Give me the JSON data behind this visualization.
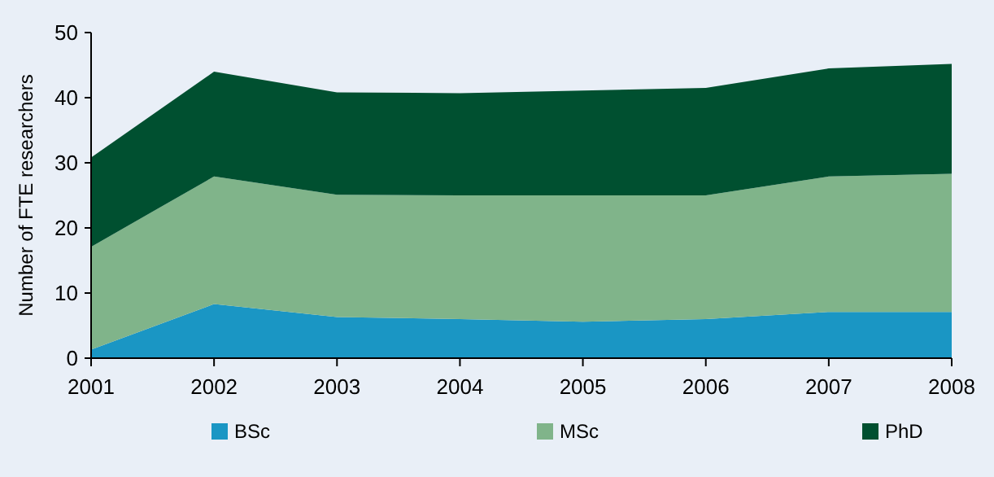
{
  "chart_data": {
    "type": "area",
    "stacked": true,
    "ylabel": "Number of FTE researchers",
    "categories": [
      "2001",
      "2002",
      "2003",
      "2004",
      "2005",
      "2006",
      "2007",
      "2008"
    ],
    "series": [
      {
        "name": "BSc",
        "color": "#1a96c4",
        "values": [
          1.3,
          8.3,
          6.3,
          6,
          5.6,
          6,
          7.1,
          7.1
        ]
      },
      {
        "name": "MSc",
        "color": "#80b48a",
        "values": [
          15.8,
          19.6,
          18.8,
          19,
          19.4,
          19,
          20.8,
          21.2
        ]
      },
      {
        "name": "PhD",
        "color": "#005030",
        "values": [
          13.7,
          16.1,
          15.7,
          15.7,
          16.1,
          16.5,
          16.6,
          16.9
        ]
      }
    ],
    "ylim": [
      0,
      50
    ],
    "yticks": [
      0,
      10,
      20,
      30,
      40,
      50
    ],
    "grid": false,
    "legend": "bottom"
  }
}
